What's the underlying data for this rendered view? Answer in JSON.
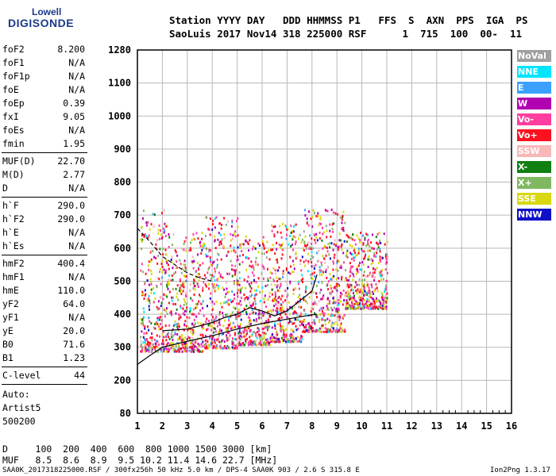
{
  "logo": {
    "line1": "Lowell",
    "line2": "DIGISONDE"
  },
  "header": {
    "line1": "Station YYYY DAY   DDD HHMMSS P1   FFS  S  AXN  PPS  IGA  PS",
    "line2": "SaoLuis 2017 Nov14 318 225000 RSF      1  715  100  00-  11"
  },
  "params_group1": [
    {
      "label": "foF2",
      "value": "8.200"
    },
    {
      "label": "foF1",
      "value": "N/A"
    },
    {
      "label": "foF1p",
      "value": "N/A"
    },
    {
      "label": "foE",
      "value": "N/A"
    },
    {
      "label": "foEp",
      "value": "0.39"
    },
    {
      "label": "fxI",
      "value": "9.05"
    },
    {
      "label": "foEs",
      "value": "N/A"
    },
    {
      "label": "fmin",
      "value": "1.95"
    }
  ],
  "params_group2": [
    {
      "label": "MUF(D)",
      "value": "22.70"
    },
    {
      "label": "M(D)",
      "value": "2.77"
    },
    {
      "label": "D",
      "value": "N/A"
    }
  ],
  "params_group3": [
    {
      "label": "h`F",
      "value": "290.0"
    },
    {
      "label": "h`F2",
      "value": "290.0"
    },
    {
      "label": "h`E",
      "value": "N/A"
    },
    {
      "label": "h`Es",
      "value": "N/A"
    }
  ],
  "params_group4": [
    {
      "label": "hmF2",
      "value": "400.4"
    },
    {
      "label": "hmF1",
      "value": "N/A"
    },
    {
      "label": "hmE",
      "value": "110.0"
    },
    {
      "label": "yF2",
      "value": "64.0"
    },
    {
      "label": "yF1",
      "value": "N/A"
    },
    {
      "label": "yE",
      "value": "20.0"
    },
    {
      "label": "B0",
      "value": "71.6"
    },
    {
      "label": "B1",
      "value": "1.23"
    }
  ],
  "params_group5": [
    {
      "label": "C-level",
      "value": "44"
    }
  ],
  "auto_info": [
    "Auto:",
    "Artist5",
    "500200"
  ],
  "legend": [
    {
      "label": "NoVal",
      "color": "#a0a0a0"
    },
    {
      "label": "NNE",
      "color": "#00e5ff"
    },
    {
      "label": "E",
      "color": "#3ba0ff"
    },
    {
      "label": "W",
      "color": "#b000b0"
    },
    {
      "label": "Vo-",
      "color": "#ff3fa0"
    },
    {
      "label": "Vo+",
      "color": "#ff1020"
    },
    {
      "label": "SSW",
      "color": "#f8b8b8"
    },
    {
      "label": "X-",
      "color": "#108010"
    },
    {
      "label": "X+",
      "color": "#80b860"
    },
    {
      "label": "SSE",
      "color": "#d8d810"
    },
    {
      "label": "NNW",
      "color": "#1010c8"
    }
  ],
  "bottom_table": {
    "row1": "D     100  200  400  600  800 1000 1500 3000 [km]",
    "row2": "MUF   8.5  8.6  8.9  9.5 10.2 11.4 14.6 22.7 [MHz]"
  },
  "footer": {
    "left": "SAA0K_2017318225000.RSF / 300fx256h 50 kHz 5.0 km / DPS-4 SAA0K 903 / 2.6 S 315.8 E",
    "right": "Ion2Png 1.3.17"
  },
  "chart_data": {
    "type": "scatter",
    "title": "",
    "xlabel": "",
    "ylabel": "",
    "xlim": [
      1,
      16
    ],
    "x_ticks": [
      1,
      2,
      3,
      4,
      5,
      6,
      7,
      8,
      9,
      10,
      11,
      12,
      13,
      14,
      15,
      16
    ],
    "y_tick_values": [
      80,
      200,
      300,
      400,
      500,
      600,
      700,
      800,
      900,
      1000,
      1100,
      1280
    ],
    "y_tick_labels": [
      "80",
      "200",
      "300",
      "400",
      "500",
      "600",
      "700",
      "800",
      "900",
      "1000",
      "1100",
      "1280"
    ],
    "grid": true,
    "series": [
      {
        "name": "h'(f) trace",
        "style": "dashed",
        "color": "#000000",
        "x": [
          1.0,
          1.5,
          2.0,
          2.5,
          3.0,
          3.5,
          4.0
        ],
        "y": [
          660,
          620,
          575,
          550,
          525,
          510,
          500
        ]
      },
      {
        "name": "profile envelope",
        "style": "solid",
        "color": "#000000",
        "x": [
          1.0,
          1.5,
          2.0,
          3.0,
          4.0,
          5.0,
          6.0,
          7.0,
          7.5,
          8.0,
          8.2
        ],
        "y": [
          248,
          275,
          300,
          318,
          335,
          355,
          372,
          385,
          392,
          398,
          400
        ]
      },
      {
        "name": "profile upper",
        "style": "solid",
        "color": "#000000",
        "x": [
          2.0,
          3.0,
          4.0,
          4.5,
          5.0,
          5.5,
          6.0,
          6.5,
          7.0,
          7.5,
          8.0,
          8.2
        ],
        "y": [
          350,
          355,
          375,
          390,
          400,
          420,
          410,
          395,
          410,
          440,
          470,
          520
        ]
      }
    ],
    "clusters": [
      {
        "x_range": [
          1.1,
          2.2
        ],
        "y_range": [
          290,
          720
        ]
      },
      {
        "x_range": [
          2.2,
          3.6
        ],
        "y_range": [
          290,
          650
        ]
      },
      {
        "x_range": [
          3.6,
          5.0
        ],
        "y_range": [
          300,
          700
        ]
      },
      {
        "x_range": [
          5.0,
          6.3
        ],
        "y_range": [
          310,
          640
        ]
      },
      {
        "x_range": [
          6.3,
          7.6
        ],
        "y_range": [
          320,
          680
        ]
      },
      {
        "x_range": [
          7.6,
          9.3
        ],
        "y_range": [
          350,
          720
        ]
      },
      {
        "x_range": [
          9.3,
          11.0
        ],
        "y_range": [
          420,
          650
        ]
      }
    ]
  }
}
